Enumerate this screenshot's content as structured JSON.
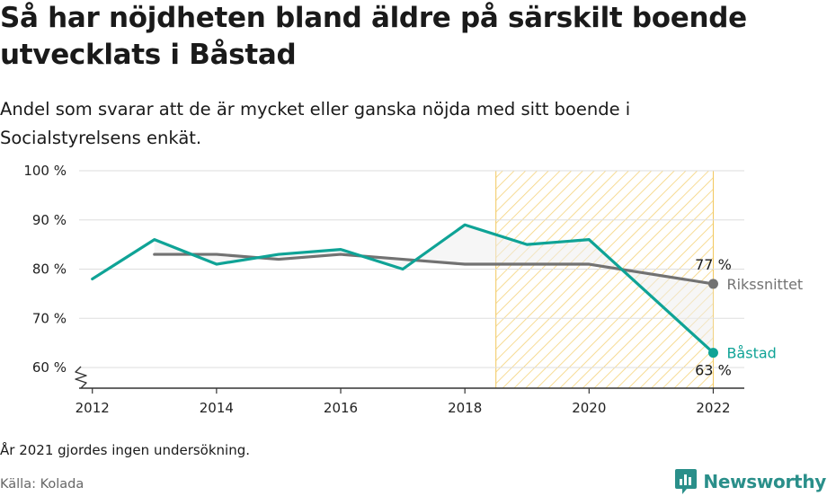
{
  "title": "Så har nöjdheten bland äldre på särskilt boende utvecklats i Båstad",
  "subtitle": "Andel som svarar att de är mycket eller ganska nöjda med sitt boende i Socialstyrelsens enkät.",
  "note": "År 2021 gjordes ingen undersökning.",
  "source": "Källa: Kolada",
  "brand": {
    "name": "Newsworthy",
    "icon": "newsworthy-logo-icon"
  },
  "colors": {
    "bastad": "#0fa396",
    "riket": "#727272",
    "hatch": "#f5d37a",
    "hatch_border": "#f2c75c",
    "band": "#ededed",
    "grid": "#dddddd"
  },
  "chart_data": {
    "type": "line",
    "x": [
      2012,
      2013,
      2014,
      2015,
      2016,
      2017,
      2018,
      2019,
      2020,
      2022
    ],
    "xlim": [
      2011.7,
      2022.5
    ],
    "ylim": [
      55.8,
      100
    ],
    "y_axis_break": true,
    "xticks": [
      2012,
      2014,
      2016,
      2018,
      2020,
      2022
    ],
    "yticks": [
      {
        "value": 60,
        "label": "60 %"
      },
      {
        "value": 70,
        "label": "70 %"
      },
      {
        "value": 80,
        "label": "80 %"
      },
      {
        "value": 90,
        "label": "90 %"
      },
      {
        "value": 100,
        "label": "100 %"
      }
    ],
    "highlight_x_range": [
      2018.5,
      2022
    ],
    "series": [
      {
        "name": "Båstad",
        "values": [
          78,
          86,
          81,
          83,
          84,
          80,
          89,
          85,
          86,
          63
        ],
        "end_label": "63 %"
      },
      {
        "name": "Rikssnittet",
        "values": [
          null,
          83,
          83,
          82,
          83,
          82,
          81,
          81,
          81,
          77
        ],
        "end_label": "77 %"
      }
    ]
  }
}
